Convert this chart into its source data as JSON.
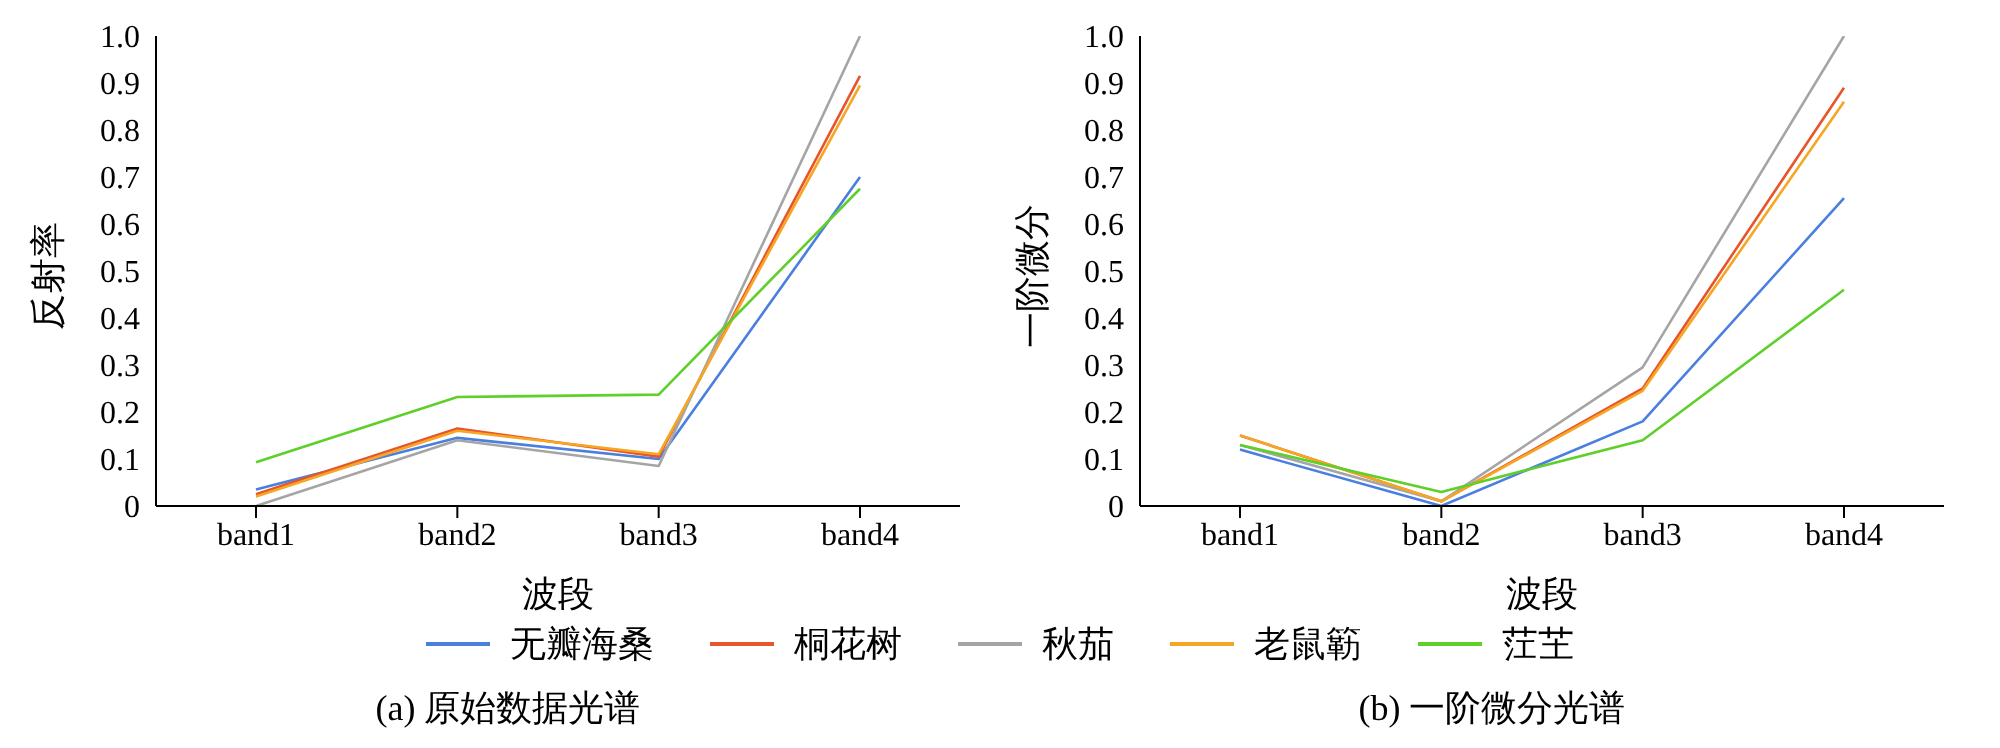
{
  "chart_data": [
    {
      "type": "line",
      "title": "(a) 原始数据光谱",
      "xlabel": "波段",
      "ylabel": "反射率",
      "categories": [
        "band1",
        "band2",
        "band3",
        "band4"
      ],
      "ylim": [
        0,
        1
      ],
      "yticks": [
        0,
        0.1,
        0.2,
        0.3,
        0.4,
        0.5,
        0.6,
        0.7,
        0.8,
        0.9,
        {
          "value": 1,
          "label": "1.0"
        }
      ],
      "grid": false,
      "legend": "bottom",
      "marker": "none",
      "line_style": "solid",
      "series": [
        {
          "name": "无瓣海桑",
          "color": "#4a7fe0",
          "values": [
            0.035,
            0.145,
            0.1,
            0.7
          ]
        },
        {
          "name": "桐花树",
          "color": "#e8552a",
          "values": [
            0.025,
            0.165,
            0.105,
            0.915
          ]
        },
        {
          "name": "秋茄",
          "color": "#a5a5a5",
          "values": [
            0.0,
            0.14,
            0.085,
            1.0
          ]
        },
        {
          "name": "老鼠簕",
          "color": "#f5a623",
          "values": [
            0.02,
            0.16,
            0.11,
            0.895
          ]
        },
        {
          "name": "茳芏",
          "color": "#5fcf2a",
          "values": [
            0.093,
            0.232,
            0.237,
            0.675
          ]
        }
      ]
    },
    {
      "type": "line",
      "title": "(b) 一阶微分光谱",
      "xlabel": "波段",
      "ylabel": "一阶微分",
      "categories": [
        "band1",
        "band2",
        "band3",
        "band4"
      ],
      "ylim": [
        0,
        1
      ],
      "yticks": [
        0,
        0.1,
        0.2,
        0.3,
        0.4,
        0.5,
        0.6,
        0.7,
        0.8,
        0.9,
        {
          "value": 1,
          "label": "1.0"
        }
      ],
      "grid": false,
      "marker": "none",
      "line_style": "solid",
      "series": [
        {
          "color": "#4a7fe0",
          "values": [
            0.12,
            0.0,
            0.18,
            0.655
          ]
        },
        {
          "color": "#e8552a",
          "values": [
            0.15,
            0.01,
            0.25,
            0.89
          ]
        },
        {
          "color": "#a5a5a5",
          "values": [
            0.13,
            0.01,
            0.295,
            1.0
          ]
        },
        {
          "color": "#f5a623",
          "values": [
            0.15,
            0.01,
            0.245,
            0.86
          ]
        },
        {
          "color": "#5fcf2a",
          "values": [
            0.13,
            0.03,
            0.14,
            0.46
          ]
        }
      ]
    }
  ]
}
